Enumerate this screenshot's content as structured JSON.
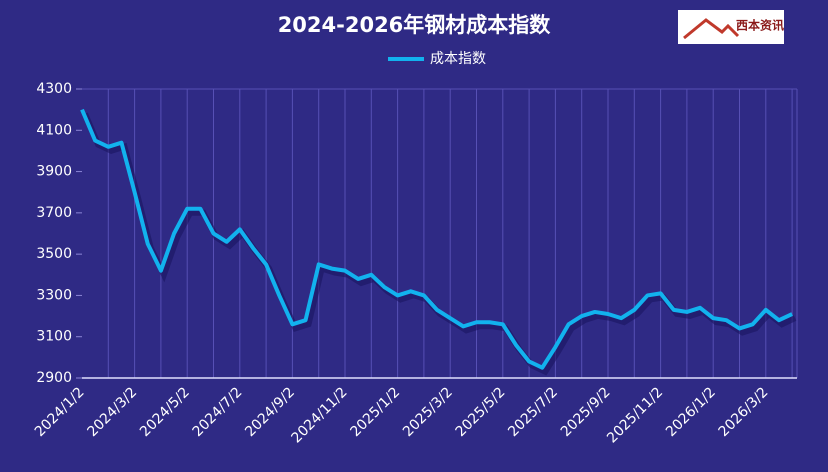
{
  "chart_data": {
    "type": "line",
    "title": "2024-2026年钢材成本指数",
    "logo": "西本资讯",
    "categories": [
      "2024/1/2",
      null,
      null,
      null,
      "2024/3/2",
      null,
      null,
      null,
      "2024/5/2",
      null,
      null,
      null,
      "2024/7/2",
      null,
      null,
      null,
      "2024/9/2",
      null,
      null,
      null,
      "2024/11/2",
      null,
      null,
      null,
      "2025/1/2",
      null,
      null,
      null,
      "2025/3/2",
      null,
      null,
      null,
      "2025/5/2",
      null,
      null,
      null,
      "2025/7/2",
      null,
      null,
      null,
      "2025/9/2",
      null,
      null,
      null,
      "2025/11/2",
      null,
      null,
      null,
      "2026/1/2",
      null,
      null,
      null,
      "2026/3/2",
      null,
      null
    ],
    "series": [
      {
        "name": "成本指数",
        "color": "#12b2ee",
        "values": [
          4200,
          4050,
          4020,
          4040,
          3800,
          3550,
          3420,
          3600,
          3720,
          3720,
          3600,
          3560,
          3620,
          3530,
          3450,
          3300,
          3160,
          3180,
          3450,
          3430,
          3420,
          3380,
          3400,
          3340,
          3300,
          3320,
          3300,
          3230,
          3190,
          3150,
          3170,
          3170,
          3160,
          3060,
          2980,
          2950,
          3050,
          3160,
          3200,
          3220,
          3210,
          3190,
          3230,
          3300,
          3310,
          3230,
          3220,
          3240,
          3190,
          3180,
          3140,
          3160,
          3230,
          3180,
          3210
        ]
      }
    ],
    "ylim": [
      2900,
      4300
    ],
    "yticks": [
      2900,
      3100,
      3300,
      3500,
      3700,
      3900,
      4100,
      4300
    ],
    "legend": "top"
  }
}
